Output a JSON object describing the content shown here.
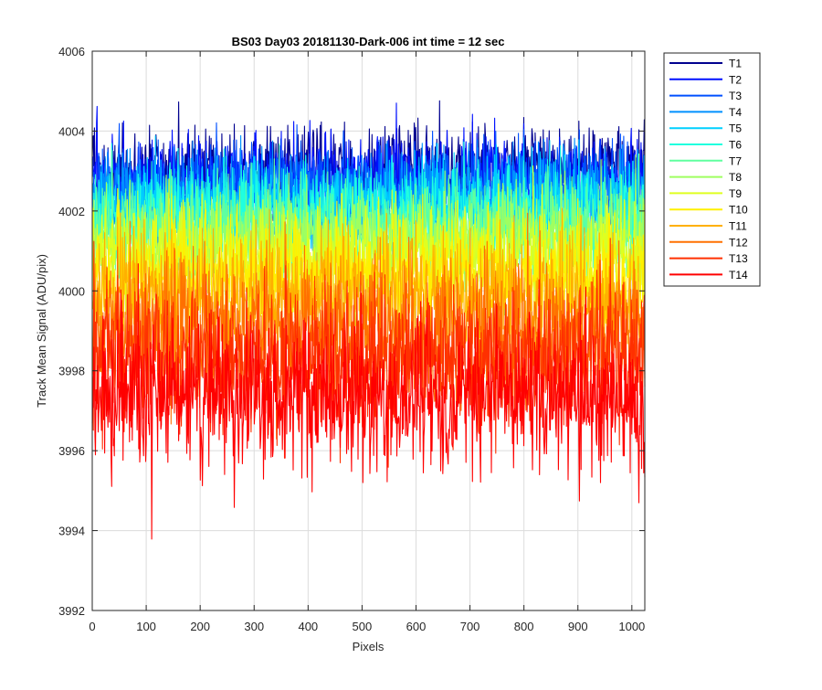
{
  "chart_data": {
    "type": "line",
    "title": "BS03 Day03 20181130-Dark-006 int time = 12 sec",
    "xlabel": "Pixels",
    "ylabel": "Track Mean Signal (ADU/pix)",
    "xlim": [
      0,
      1024
    ],
    "ylim": [
      3992,
      4006
    ],
    "xticks": [
      0,
      100,
      200,
      300,
      400,
      500,
      600,
      700,
      800,
      900,
      1000
    ],
    "yticks": [
      3992,
      3994,
      3996,
      3998,
      4000,
      4002,
      4004,
      4006
    ],
    "grid": true,
    "legend_location": "outside-top-right",
    "colormap": "jet",
    "num_points_per_series": 1024,
    "series": [
      {
        "name": "T1",
        "color": "#00008F",
        "mean": 4003.0,
        "noise_sd": 0.55
      },
      {
        "name": "T2",
        "color": "#0010FF",
        "mean": 4002.8,
        "noise_sd": 0.55
      },
      {
        "name": "T3",
        "color": "#0050FF",
        "mean": 4002.6,
        "noise_sd": 0.55
      },
      {
        "name": "T4",
        "color": "#0090FF",
        "mean": 4002.4,
        "noise_sd": 0.55
      },
      {
        "name": "T5",
        "color": "#00D0FF",
        "mean": 4002.2,
        "noise_sd": 0.55
      },
      {
        "name": "T6",
        "color": "#20FFDF",
        "mean": 4001.9,
        "noise_sd": 0.6
      },
      {
        "name": "T7",
        "color": "#60FF9F",
        "mean": 4001.6,
        "noise_sd": 0.6
      },
      {
        "name": "T8",
        "color": "#9FFF60",
        "mean": 4001.3,
        "noise_sd": 0.6
      },
      {
        "name": "T9",
        "color": "#DFFF20",
        "mean": 4000.9,
        "noise_sd": 0.65
      },
      {
        "name": "T10",
        "color": "#FFF000",
        "mean": 4000.4,
        "noise_sd": 0.7
      },
      {
        "name": "T11",
        "color": "#FFB000",
        "mean": 3999.8,
        "noise_sd": 0.8
      },
      {
        "name": "T12",
        "color": "#FF7000",
        "mean": 3999.0,
        "noise_sd": 0.9
      },
      {
        "name": "T13",
        "color": "#FF3000",
        "mean": 3998.3,
        "noise_sd": 0.95
      },
      {
        "name": "T14",
        "color": "#FF0000",
        "mean": 3997.3,
        "noise_sd": 0.95
      }
    ]
  }
}
